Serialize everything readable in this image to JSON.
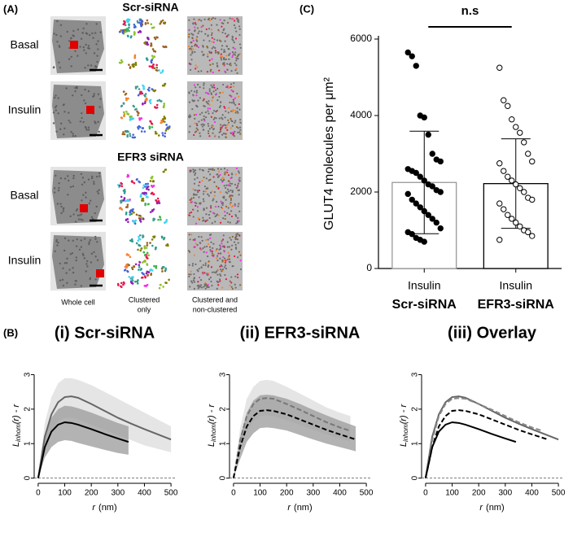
{
  "panel_a": {
    "panel_label": "(A)",
    "groups": [
      "Scr-siRNA",
      "EFR3 siRNA"
    ],
    "rows": [
      "Basal",
      "Insulin",
      "Basal",
      "Insulin"
    ],
    "captions": [
      [
        "Whole cell"
      ],
      [
        "Clustered",
        "only"
      ],
      [
        "Clustered and",
        "non-clustered"
      ]
    ]
  },
  "chart_data": [
    {
      "type": "bar",
      "panel_label": "(C)",
      "annotation": "n.s",
      "ylabel": "GLUT4 molecules per μm²",
      "categories": [
        "Scr-siRNA",
        "EFR3-siRNA"
      ],
      "condition_labels": [
        "Insulin",
        "Insulin"
      ],
      "values": [
        2250,
        2220
      ],
      "errors": [
        1340,
        1170
      ],
      "color": "#ffffff",
      "edgecolors": [
        "#999999",
        "#000000"
      ],
      "points": [
        {
          "fill": "#000000",
          "values": [
            5650,
            5550,
            5300,
            4000,
            3950,
            3500,
            3000,
            2850,
            2800,
            2600,
            2550,
            2500,
            2400,
            2300,
            2200,
            2150,
            2050,
            2000,
            1950,
            1800,
            1700,
            1600,
            1500,
            1400,
            1300,
            1200,
            1050,
            950,
            900,
            800,
            750,
            700
          ]
        },
        {
          "fill": "#ffffff",
          "values": [
            5250,
            4400,
            4250,
            3900,
            3700,
            3550,
            3300,
            3000,
            2800,
            2750,
            2550,
            2400,
            2300,
            2200,
            2100,
            2000,
            1850,
            1800,
            1700,
            1550,
            1400,
            1300,
            1200,
            1100,
            1000,
            950,
            850,
            750
          ]
        }
      ],
      "ylim": [
        0,
        6000
      ],
      "yticks": [
        0,
        2000,
        4000,
        6000
      ]
    },
    {
      "type": "line",
      "panel_label": "(B)",
      "title": "(i) Scr-siRNA",
      "ylabel": {
        "main": "L",
        "sub": "inhom",
        "rest": "(r) - r"
      },
      "xlabel": {
        "var": "r",
        "unit": "(nm)"
      },
      "xlim": [
        -15,
        515
      ],
      "ylim": [
        -0.15,
        3.2
      ],
      "xticks": [
        0,
        100,
        200,
        300,
        400,
        500
      ],
      "yticks": [
        0,
        1,
        2,
        3
      ],
      "hline": 0,
      "series": [
        {
          "color": "#666666",
          "dashed": false,
          "band_color": "#dcdcdc",
          "x": [
            0,
            25,
            50,
            75,
            100,
            125,
            150,
            200,
            250,
            300,
            350,
            400,
            450,
            500
          ],
          "values": [
            0,
            1.2,
            1.85,
            2.2,
            2.35,
            2.37,
            2.33,
            2.15,
            1.95,
            1.75,
            1.58,
            1.42,
            1.27,
            1.12
          ],
          "lower": [
            0,
            0.9,
            1.4,
            1.65,
            1.75,
            1.75,
            1.7,
            1.55,
            1.4,
            1.25,
            1.1,
            0.95,
            0.85,
            0.75
          ],
          "upper": [
            0,
            1.6,
            2.35,
            2.75,
            2.9,
            2.9,
            2.85,
            2.7,
            2.5,
            2.3,
            2.1,
            1.9,
            1.7,
            1.5
          ]
        },
        {
          "color": "#000000",
          "dashed": false,
          "band_color": "#9a9a9a",
          "x": [
            0,
            25,
            50,
            75,
            100,
            125,
            150,
            200,
            250,
            300,
            340
          ],
          "values": [
            0,
            0.9,
            1.35,
            1.55,
            1.62,
            1.6,
            1.55,
            1.42,
            1.28,
            1.15,
            1.05
          ],
          "lower": [
            0,
            0.6,
            0.9,
            1.05,
            1.1,
            1.08,
            1.02,
            0.92,
            0.82,
            0.73,
            0.68
          ],
          "upper": [
            0,
            1.2,
            1.75,
            2.0,
            2.1,
            2.08,
            2.03,
            1.9,
            1.75,
            1.6,
            1.5
          ]
        }
      ]
    },
    {
      "type": "line",
      "title": "(ii) EFR3-siRNA",
      "ylabel": {
        "main": "L",
        "sub": "inhom",
        "rest": "(r) - r"
      },
      "xlabel": {
        "var": "r",
        "unit": "(nm)"
      },
      "xlim": [
        -15,
        515
      ],
      "ylim": [
        -0.15,
        3.2
      ],
      "xticks": [
        0,
        100,
        200,
        300,
        400,
        500
      ],
      "yticks": [
        0,
        1,
        2,
        3
      ],
      "hline": 0,
      "series": [
        {
          "color": "#777777",
          "dashed": true,
          "band_color": "#dcdcdc",
          "x": [
            0,
            25,
            50,
            75,
            100,
            125,
            150,
            200,
            250,
            300,
            350,
            400,
            440
          ],
          "values": [
            0,
            1.1,
            1.8,
            2.15,
            2.3,
            2.32,
            2.3,
            2.15,
            1.98,
            1.8,
            1.62,
            1.47,
            1.37
          ],
          "lower": [
            0,
            0.8,
            1.35,
            1.65,
            1.8,
            1.82,
            1.8,
            1.68,
            1.55,
            1.4,
            1.27,
            1.15,
            1.07
          ],
          "upper": [
            0,
            1.45,
            2.3,
            2.65,
            2.82,
            2.85,
            2.82,
            2.65,
            2.45,
            2.25,
            2.05,
            1.9,
            1.8
          ]
        },
        {
          "color": "#000000",
          "dashed": true,
          "band_color": "#9a9a9a",
          "x": [
            0,
            25,
            50,
            75,
            100,
            125,
            150,
            200,
            250,
            300,
            350,
            400,
            460
          ],
          "values": [
            0,
            0.9,
            1.5,
            1.8,
            1.95,
            1.97,
            1.95,
            1.85,
            1.7,
            1.55,
            1.4,
            1.27,
            1.12
          ],
          "lower": [
            0,
            0.55,
            1.05,
            1.3,
            1.45,
            1.47,
            1.45,
            1.38,
            1.25,
            1.12,
            1.0,
            0.9,
            0.78
          ],
          "upper": [
            0,
            1.2,
            1.9,
            2.25,
            2.4,
            2.42,
            2.4,
            2.3,
            2.15,
            1.98,
            1.82,
            1.67,
            1.5
          ]
        }
      ]
    },
    {
      "type": "line",
      "title": "(iii) Overlay",
      "ylabel": {
        "main": "L",
        "sub": "inhom",
        "rest": "(r) - r"
      },
      "xlabel": {
        "var": "r",
        "unit": "(nm)"
      },
      "xlim": [
        -15,
        515
      ],
      "ylim": [
        -0.15,
        3.2
      ],
      "xticks": [
        0,
        100,
        200,
        300,
        400,
        500
      ],
      "yticks": [
        0,
        1,
        2,
        3
      ],
      "hline": 0,
      "series": [
        {
          "color": "#666666",
          "dashed": false,
          "x": [
            0,
            25,
            50,
            75,
            100,
            125,
            150,
            200,
            250,
            300,
            350,
            400,
            450,
            500
          ],
          "values": [
            0,
            1.2,
            1.85,
            2.2,
            2.35,
            2.37,
            2.33,
            2.15,
            1.95,
            1.75,
            1.58,
            1.42,
            1.27,
            1.12
          ]
        },
        {
          "color": "#888888",
          "dashed": true,
          "x": [
            0,
            25,
            50,
            75,
            100,
            125,
            150,
            200,
            250,
            300,
            350,
            400,
            440
          ],
          "values": [
            0,
            1.1,
            1.8,
            2.15,
            2.3,
            2.32,
            2.3,
            2.15,
            1.98,
            1.8,
            1.62,
            1.47,
            1.37
          ]
        },
        {
          "color": "#000000",
          "dashed": true,
          "x": [
            0,
            25,
            50,
            75,
            100,
            125,
            150,
            200,
            250,
            300,
            350,
            400,
            460
          ],
          "values": [
            0,
            0.9,
            1.5,
            1.8,
            1.95,
            1.97,
            1.95,
            1.85,
            1.7,
            1.55,
            1.4,
            1.27,
            1.12
          ]
        },
        {
          "color": "#000000",
          "dashed": false,
          "x": [
            0,
            25,
            50,
            75,
            100,
            125,
            150,
            200,
            250,
            300,
            340
          ],
          "values": [
            0,
            0.9,
            1.35,
            1.55,
            1.62,
            1.6,
            1.55,
            1.42,
            1.28,
            1.15,
            1.05
          ]
        }
      ]
    }
  ]
}
